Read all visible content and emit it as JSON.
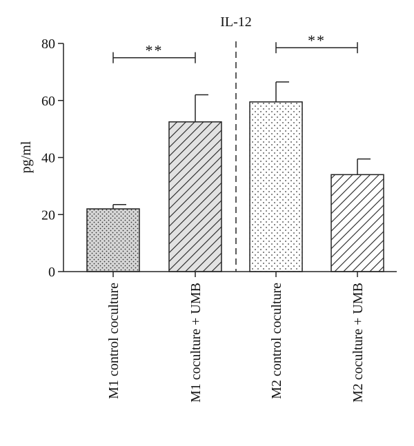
{
  "chart_data": {
    "type": "bar",
    "title": "IL-12",
    "ylabel": "pg/ml",
    "xlabel": "",
    "ylim": [
      0,
      80
    ],
    "yticks": [
      0,
      20,
      40,
      60,
      80
    ],
    "categories": [
      "M1 control coculture",
      "M1 coculture + UMB",
      "M2 control coculture",
      "M2 coculture + UMB"
    ],
    "values": [
      22,
      52.5,
      59.5,
      34
    ],
    "errors": [
      1.5,
      9.5,
      7,
      5.5
    ],
    "patterns": [
      "dense-dots",
      "diagonal-lines",
      "sparse-dots",
      "diagonal-lines"
    ],
    "fill_colors": [
      "#d9d9d9",
      "#e0e0e0",
      "#ffffff",
      "#ffffff"
    ],
    "group_divider": "dashed vertical line between M1 and M2 groups",
    "significance": [
      {
        "from": 0,
        "to": 1,
        "label": "**",
        "y": 75
      },
      {
        "from": 2,
        "to": 3,
        "label": "**",
        "y": 78.5
      }
    ],
    "grid": false
  }
}
